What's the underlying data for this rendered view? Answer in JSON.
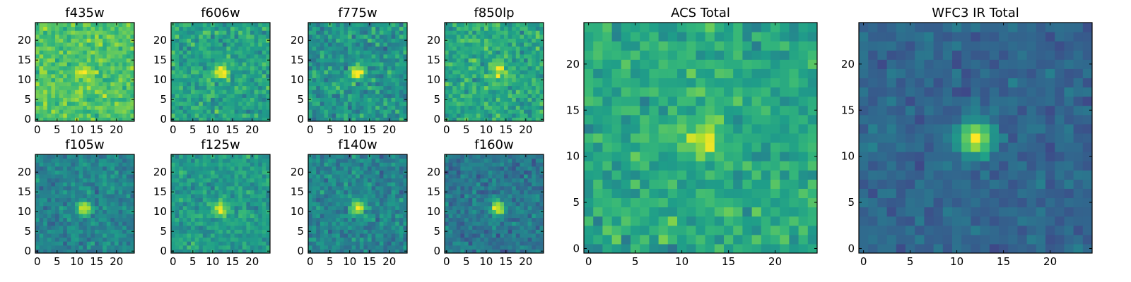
{
  "chart_data": [
    {
      "type": "heatmap",
      "title": "f435w",
      "xlim": [
        0,
        24
      ],
      "ylim": [
        0,
        24
      ],
      "xticks": [
        0,
        5,
        10,
        15,
        20
      ],
      "yticks": [
        0,
        5,
        10,
        15,
        20
      ],
      "grid": false,
      "colormap": "viridis",
      "background_level": 0.72,
      "noise": 0.2,
      "peak_level": 0.95,
      "peak_center": [
        12,
        12
      ],
      "seed": 11
    },
    {
      "type": "heatmap",
      "title": "f606w",
      "xlim": [
        0,
        24
      ],
      "ylim": [
        0,
        24
      ],
      "xticks": [
        0,
        5,
        10,
        15,
        20
      ],
      "yticks": [
        0,
        5,
        10,
        15,
        20
      ],
      "grid": false,
      "colormap": "viridis",
      "background_level": 0.58,
      "noise": 0.22,
      "peak_level": 1.0,
      "peak_center": [
        12,
        12
      ],
      "seed": 23
    },
    {
      "type": "heatmap",
      "title": "f775w",
      "xlim": [
        0,
        24
      ],
      "ylim": [
        0,
        24
      ],
      "xticks": [
        0,
        5,
        10,
        15,
        20
      ],
      "yticks": [
        0,
        5,
        10,
        15,
        20
      ],
      "grid": false,
      "colormap": "viridis",
      "background_level": 0.52,
      "noise": 0.24,
      "peak_level": 1.0,
      "peak_center": [
        12,
        12
      ],
      "seed": 37
    },
    {
      "type": "heatmap",
      "title": "f850lp",
      "xlim": [
        0,
        24
      ],
      "ylim": [
        0,
        24
      ],
      "xticks": [
        0,
        5,
        10,
        15,
        20
      ],
      "yticks": [
        0,
        5,
        10,
        15,
        20
      ],
      "grid": false,
      "colormap": "viridis",
      "background_level": 0.6,
      "noise": 0.22,
      "peak_level": 1.0,
      "peak_center": [
        13,
        12
      ],
      "seed": 41
    },
    {
      "type": "heatmap",
      "title": "f105w",
      "xlim": [
        0,
        24
      ],
      "ylim": [
        0,
        24
      ],
      "xticks": [
        0,
        5,
        10,
        15,
        20
      ],
      "yticks": [
        0,
        5,
        10,
        15,
        20
      ],
      "grid": false,
      "colormap": "viridis",
      "background_level": 0.45,
      "noise": 0.18,
      "peak_level": 1.0,
      "peak_center": [
        12,
        11
      ],
      "seed": 53
    },
    {
      "type": "heatmap",
      "title": "f125w",
      "xlim": [
        0,
        24
      ],
      "ylim": [
        0,
        24
      ],
      "xticks": [
        0,
        5,
        10,
        15,
        20
      ],
      "yticks": [
        0,
        5,
        10,
        15,
        20
      ],
      "grid": false,
      "colormap": "viridis",
      "background_level": 0.55,
      "noise": 0.18,
      "peak_level": 1.0,
      "peak_center": [
        12,
        11
      ],
      "seed": 67
    },
    {
      "type": "heatmap",
      "title": "f140w",
      "xlim": [
        0,
        24
      ],
      "ylim": [
        0,
        24
      ],
      "xticks": [
        0,
        5,
        10,
        15,
        20
      ],
      "yticks": [
        0,
        5,
        10,
        15,
        20
      ],
      "grid": false,
      "colormap": "viridis",
      "background_level": 0.45,
      "noise": 0.2,
      "peak_level": 1.0,
      "peak_center": [
        12,
        11
      ],
      "seed": 79
    },
    {
      "type": "heatmap",
      "title": "f160w",
      "xlim": [
        0,
        24
      ],
      "ylim": [
        0,
        24
      ],
      "xticks": [
        0,
        5,
        10,
        15,
        20
      ],
      "yticks": [
        0,
        5,
        10,
        15,
        20
      ],
      "grid": false,
      "colormap": "viridis",
      "background_level": 0.4,
      "noise": 0.18,
      "peak_level": 1.0,
      "peak_center": [
        13,
        11
      ],
      "seed": 83
    },
    {
      "type": "heatmap",
      "title": "ACS Total",
      "xlim": [
        0,
        24
      ],
      "ylim": [
        0,
        24
      ],
      "xticks": [
        0,
        5,
        10,
        15,
        20
      ],
      "yticks": [
        0,
        5,
        10,
        15,
        20
      ],
      "grid": false,
      "colormap": "viridis",
      "background_level": 0.6,
      "noise": 0.2,
      "peak_level": 1.0,
      "peak_center": [
        12,
        12
      ],
      "seed": 97
    },
    {
      "type": "heatmap",
      "title": "WFC3 IR Total",
      "xlim": [
        0,
        24
      ],
      "ylim": [
        0,
        24
      ],
      "xticks": [
        0,
        5,
        10,
        15,
        20
      ],
      "yticks": [
        0,
        5,
        10,
        15,
        20
      ],
      "grid": false,
      "colormap": "viridis",
      "background_level": 0.33,
      "noise": 0.12,
      "peak_level": 1.0,
      "peak_center": [
        12,
        12
      ],
      "seed": 101
    }
  ]
}
